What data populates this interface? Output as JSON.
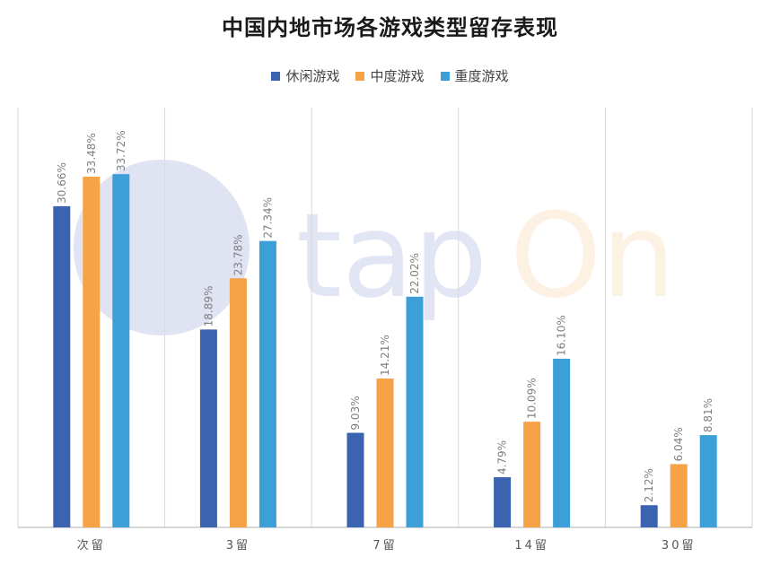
{
  "chart_data": {
    "type": "bar",
    "title": "中国内地市场各游戏类型留存表现",
    "categories": [
      "次留",
      "3留",
      "7留",
      "14留",
      "30留"
    ],
    "series": [
      {
        "name": "休闲游戏",
        "color": "#3b63b0",
        "values": [
          30.66,
          18.89,
          9.03,
          4.79,
          2.12
        ],
        "labels": [
          "30.66%",
          "18.89%",
          "9.03%",
          "4.79%",
          "2.12%"
        ]
      },
      {
        "name": "中度游戏",
        "color": "#f6a247",
        "values": [
          33.48,
          23.78,
          14.21,
          10.09,
          6.04
        ],
        "labels": [
          "33.48%",
          "23.78%",
          "14.21%",
          "10.09%",
          "6.04%"
        ]
      },
      {
        "name": "重度游戏",
        "color": "#3d9fd8",
        "values": [
          33.72,
          27.34,
          22.02,
          16.1,
          8.81
        ],
        "labels": [
          "33.72%",
          "27.34%",
          "22.02%",
          "16.10%",
          "8.81%"
        ]
      }
    ],
    "ylim": [
      0,
      40
    ],
    "legend_position": "top-center",
    "grid": "vertical-separators"
  },
  "watermark": {
    "text_primary": "tap",
    "text_secondary": "On"
  }
}
